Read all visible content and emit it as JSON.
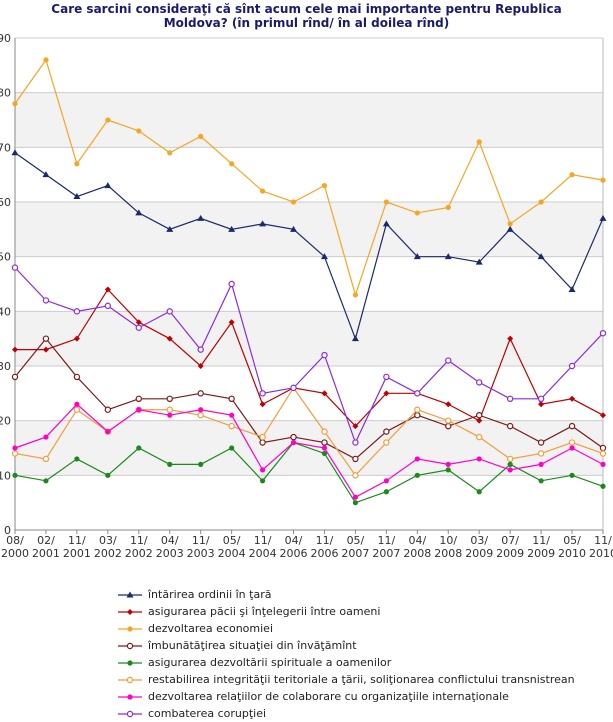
{
  "chart_data": {
    "type": "line",
    "title_lines": [
      "Care sarcini consideraţi că sînt acum cele mai importante pentru Republica",
      "Moldova? (în primul rînd/ în al doilea rînd)"
    ],
    "categories": [
      "08/2000",
      "02/2001",
      "11/2001",
      "03/2002",
      "11/2002",
      "04/2003",
      "11/2003",
      "05/2004",
      "11/2004",
      "04/2006",
      "11/2006",
      "05/2007",
      "11/2007",
      "04/2008",
      "10/2008",
      "03/2009",
      "07/2009",
      "11/2009",
      "05/2010",
      "11/2010"
    ],
    "x_tick_lines": [
      [
        "08/",
        "2000"
      ],
      [
        "02/",
        "2001"
      ],
      [
        "11/",
        "2001"
      ],
      [
        "03/",
        "2002"
      ],
      [
        "11/",
        "2002"
      ],
      [
        "04/",
        "2003"
      ],
      [
        "11/",
        "2003"
      ],
      [
        "05/",
        "2004"
      ],
      [
        "11/",
        "2004"
      ],
      [
        "04/",
        "2006"
      ],
      [
        "11/",
        "2006"
      ],
      [
        "05/",
        "2007"
      ],
      [
        "11/",
        "2007"
      ],
      [
        "04/",
        "2008"
      ],
      [
        "10/",
        "2008"
      ],
      [
        "03/",
        "2009"
      ],
      [
        "07/",
        "2009"
      ],
      [
        "11/",
        "2009"
      ],
      [
        "05/",
        "2010"
      ],
      [
        "11/",
        "2010"
      ]
    ],
    "ylim": [
      0,
      90
    ],
    "yticks": [
      0,
      10,
      20,
      30,
      40,
      50,
      60,
      70,
      80,
      90
    ],
    "series": [
      {
        "name": "întărirea ordinii în ţară",
        "color": "#1a2a6c",
        "marker": "triangle",
        "values": [
          69,
          65,
          61,
          63,
          58,
          55,
          57,
          55,
          56,
          55,
          50,
          35,
          56,
          50,
          50,
          49,
          55,
          50,
          44,
          57
        ]
      },
      {
        "name": "asigurarea păcii şi înţelegerii între oameni",
        "color": "#c00000",
        "marker": "diamond",
        "values": [
          33,
          33,
          35,
          44,
          38,
          35,
          30,
          38,
          23,
          26,
          25,
          19,
          25,
          25,
          23,
          20,
          35,
          23,
          24,
          21
        ]
      },
      {
        "name": "dezvoltarea economiei",
        "color": "#f5a623",
        "marker": "circle",
        "values": [
          78,
          86,
          67,
          75,
          73,
          69,
          72,
          67,
          62,
          60,
          63,
          43,
          60,
          58,
          59,
          71,
          56,
          60,
          65,
          64
        ]
      },
      {
        "name": "îmbunătăţirea situaţiei din învăţămînt",
        "color": "#7a1a1a",
        "marker": "open-circle",
        "values": [
          28,
          35,
          28,
          22,
          24,
          24,
          25,
          24,
          16,
          17,
          16,
          13,
          18,
          21,
          19,
          21,
          19,
          16,
          19,
          15
        ]
      },
      {
        "name": "asigurarea dezvoltării spirituale a oamenilor",
        "color": "#1a8a1a",
        "marker": "circle",
        "values": [
          10,
          9,
          13,
          10,
          15,
          12,
          12,
          15,
          9,
          16,
          14,
          5,
          7,
          10,
          11,
          7,
          12,
          9,
          10,
          8
        ]
      },
      {
        "name": "restabilirea integrităţii teritoriale a ţării, soliţionarea conflictului transnistrean",
        "color": "#f59c3c",
        "marker": "open-circle",
        "values": [
          14,
          13,
          22,
          18,
          22,
          22,
          21,
          19,
          17,
          26,
          18,
          10,
          16,
          22,
          20,
          17,
          13,
          14,
          16,
          14
        ]
      },
      {
        "name": "dezvoltarea relaţiilor de colaborare cu organizaţiile internaţionale",
        "color": "#ff00cc",
        "marker": "circle",
        "values": [
          15,
          17,
          23,
          18,
          22,
          21,
          22,
          21,
          11,
          16,
          15,
          6,
          9,
          13,
          12,
          13,
          11,
          12,
          15,
          12
        ]
      },
      {
        "name": "combaterea corupţiei",
        "color": "#8a2be2",
        "marker": "open-circle",
        "values": [
          48,
          42,
          40,
          41,
          37,
          40,
          33,
          45,
          25,
          26,
          32,
          16,
          28,
          25,
          31,
          27,
          24,
          24,
          30,
          36
        ]
      }
    ]
  }
}
